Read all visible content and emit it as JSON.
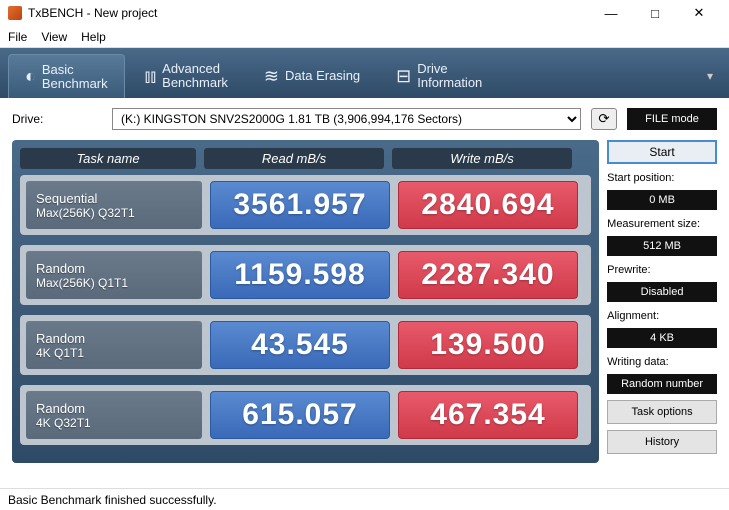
{
  "window": {
    "title": "TxBENCH - New project"
  },
  "menu": {
    "file": "File",
    "view": "View",
    "help": "Help"
  },
  "tabs": {
    "basic": {
      "line1": "Basic",
      "line2": "Benchmark"
    },
    "advanced": {
      "line1": "Advanced",
      "line2": "Benchmark"
    },
    "erasing": {
      "line1": "Data Erasing"
    },
    "driveinfo": {
      "line1": "Drive",
      "line2": "Information"
    }
  },
  "drive": {
    "label": "Drive:",
    "selected": "(K:) KINGSTON SNV2S2000G  1.81 TB (3,906,994,176 Sectors)",
    "file_mode": "FILE mode"
  },
  "headers": {
    "task": "Task name",
    "read": "Read mB/s",
    "write": "Write mB/s"
  },
  "rows": [
    {
      "name1": "Sequential",
      "name2": "Max(256K) Q32T1",
      "read": "3561.957",
      "write": "2840.694"
    },
    {
      "name1": "Random",
      "name2": "Max(256K) Q1T1",
      "read": "1159.598",
      "write": "2287.340"
    },
    {
      "name1": "Random",
      "name2": "4K Q1T1",
      "read": "43.545",
      "write": "139.500"
    },
    {
      "name1": "Random",
      "name2": "4K Q32T1",
      "read": "615.057",
      "write": "467.354"
    }
  ],
  "side": {
    "start": "Start",
    "start_pos_label": "Start position:",
    "start_pos": "0 MB",
    "meas_size_label": "Measurement size:",
    "meas_size": "512 MB",
    "prewrite_label": "Prewrite:",
    "prewrite": "Disabled",
    "align_label": "Alignment:",
    "align": "4 KB",
    "writing_label": "Writing data:",
    "writing": "Random number",
    "task_options": "Task options",
    "history": "History"
  },
  "status": "Basic Benchmark finished successfully.",
  "colors": {
    "read_bg": "#4a7ac8",
    "write_bg": "#e04a5a",
    "panel_bg": "#3a5a7a",
    "task_bg": "#6a7a8a"
  }
}
